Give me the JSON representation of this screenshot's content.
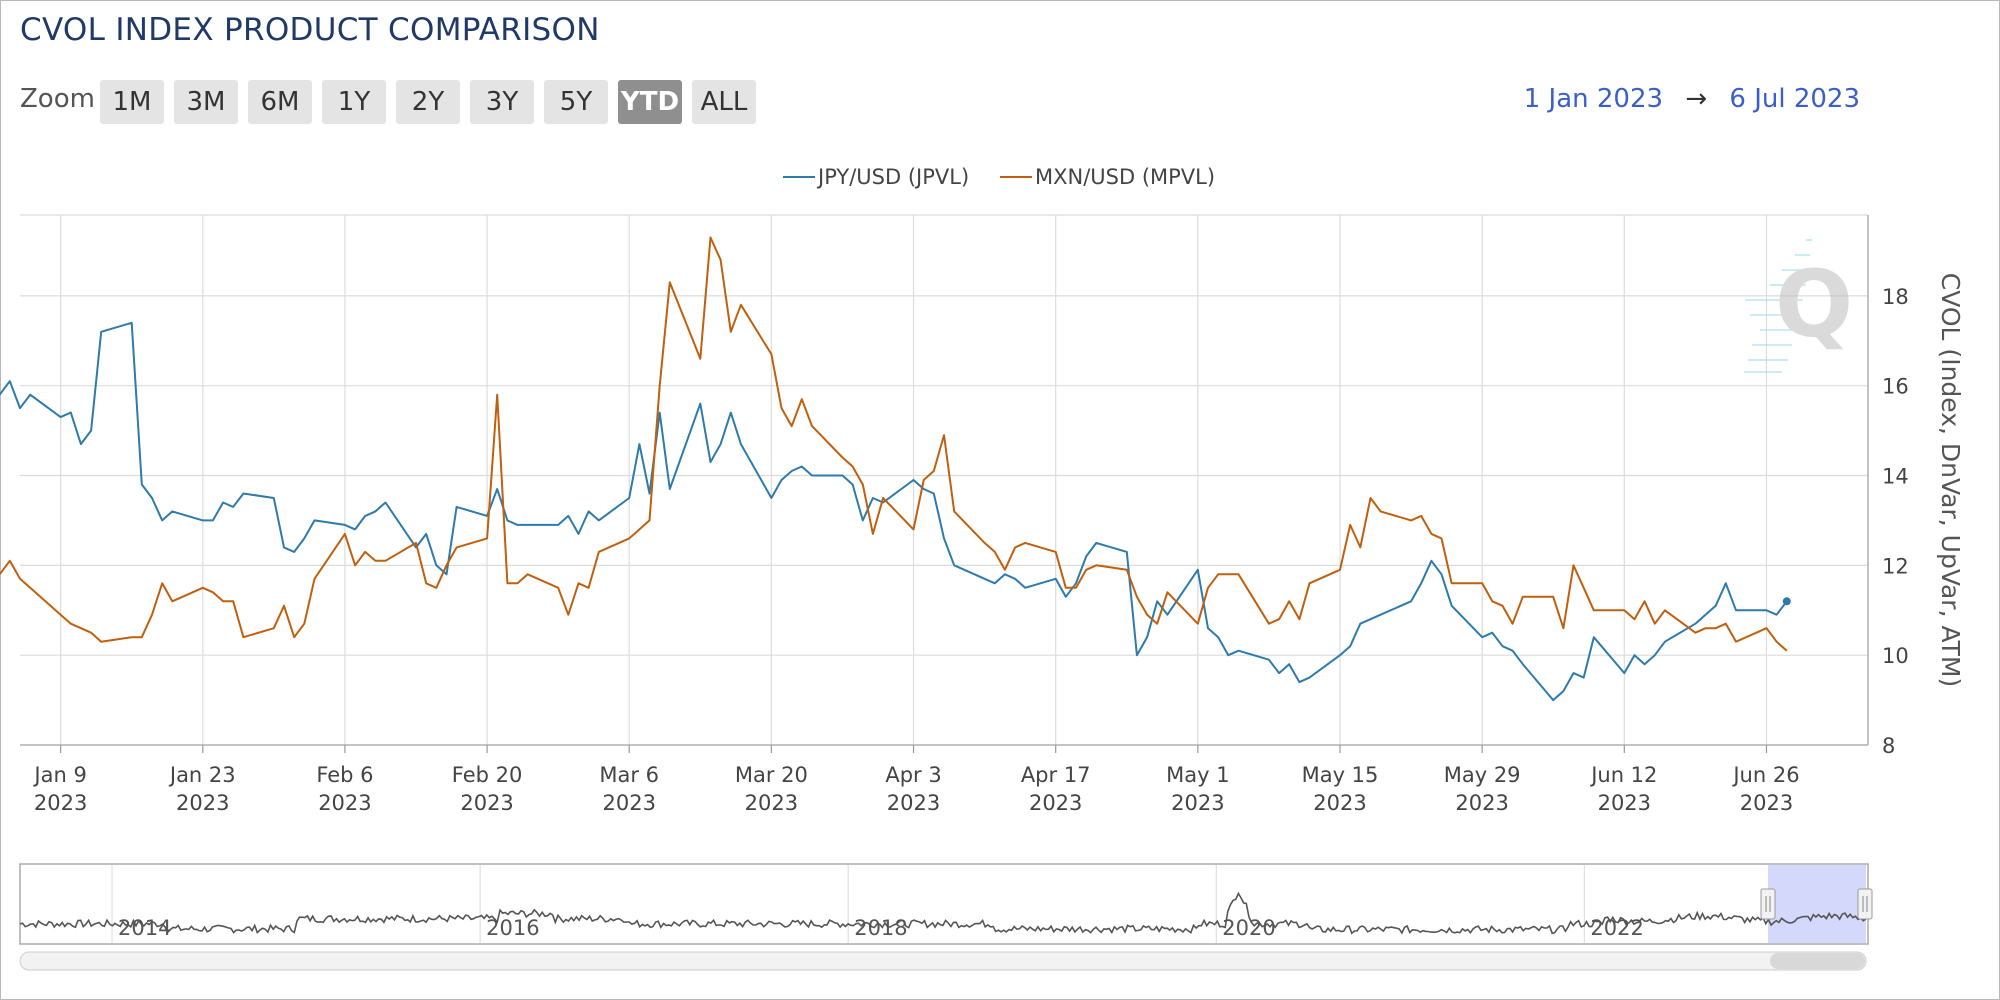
{
  "title": "CVOL INDEX PRODUCT COMPARISON",
  "zoom": {
    "label": "Zoom",
    "buttons": [
      "1M",
      "3M",
      "6M",
      "1Y",
      "2Y",
      "3Y",
      "5Y",
      "YTD",
      "ALL"
    ],
    "active": "YTD"
  },
  "range": {
    "from": "1 Jan 2023",
    "arrow": "→",
    "to": "6 Jul 2023"
  },
  "colors": {
    "jpy": "#2e7bab",
    "mxn": "#c0600e",
    "grid": "#dcdcdc",
    "navigator_fill": "#ccd2fb"
  },
  "chart_data": {
    "type": "line",
    "title": "CVOL INDEX PRODUCT COMPARISON",
    "ylabel": "CVOL (Index, DnVar, UpVar, ATM)",
    "ylim": [
      8,
      19.8
    ],
    "xlim": [
      "2023-01-05",
      "2023-07-06"
    ],
    "y_ticks": [
      8,
      10,
      12,
      14,
      16,
      18
    ],
    "x_ticks": [
      {
        "date": "2023-01-09",
        "label1": "Jan 9",
        "label2": "2023"
      },
      {
        "date": "2023-01-23",
        "label1": "Jan 23",
        "label2": "2023"
      },
      {
        "date": "2023-02-06",
        "label1": "Feb 6",
        "label2": "2023"
      },
      {
        "date": "2023-02-20",
        "label1": "Feb 20",
        "label2": "2023"
      },
      {
        "date": "2023-03-06",
        "label1": "Mar 6",
        "label2": "2023"
      },
      {
        "date": "2023-03-20",
        "label1": "Mar 20",
        "label2": "2023"
      },
      {
        "date": "2023-04-03",
        "label1": "Apr 3",
        "label2": "2023"
      },
      {
        "date": "2023-04-17",
        "label1": "Apr 17",
        "label2": "2023"
      },
      {
        "date": "2023-05-01",
        "label1": "May 1",
        "label2": "2023"
      },
      {
        "date": "2023-05-15",
        "label1": "May 15",
        "label2": "2023"
      },
      {
        "date": "2023-05-29",
        "label1": "May 29",
        "label2": "2023"
      },
      {
        "date": "2023-06-12",
        "label1": "Jun 12",
        "label2": "2023"
      },
      {
        "date": "2023-06-26",
        "label1": "Jun 26",
        "label2": "2023"
      }
    ],
    "legend_position": "top-center",
    "grid": true,
    "series": [
      {
        "name": "JPY/USD (JPVL)",
        "color": "#2e7bab",
        "points": [
          [
            "2023-01-03",
            15.8
          ],
          [
            "2023-01-04",
            16.1
          ],
          [
            "2023-01-05",
            15.5
          ],
          [
            "2023-01-06",
            15.8
          ],
          [
            "2023-01-09",
            15.3
          ],
          [
            "2023-01-10",
            15.4
          ],
          [
            "2023-01-11",
            14.7
          ],
          [
            "2023-01-12",
            15.0
          ],
          [
            "2023-01-13",
            17.2
          ],
          [
            "2023-01-16",
            17.4
          ],
          [
            "2023-01-17",
            13.8
          ],
          [
            "2023-01-18",
            13.5
          ],
          [
            "2023-01-19",
            13.0
          ],
          [
            "2023-01-20",
            13.2
          ],
          [
            "2023-01-23",
            13.0
          ],
          [
            "2023-01-24",
            13.0
          ],
          [
            "2023-01-25",
            13.4
          ],
          [
            "2023-01-26",
            13.3
          ],
          [
            "2023-01-27",
            13.6
          ],
          [
            "2023-01-30",
            13.5
          ],
          [
            "2023-01-31",
            12.4
          ],
          [
            "2023-02-01",
            12.3
          ],
          [
            "2023-02-02",
            12.6
          ],
          [
            "2023-02-03",
            13.0
          ],
          [
            "2023-02-06",
            12.9
          ],
          [
            "2023-02-07",
            12.8
          ],
          [
            "2023-02-08",
            13.1
          ],
          [
            "2023-02-09",
            13.2
          ],
          [
            "2023-02-10",
            13.4
          ],
          [
            "2023-02-13",
            12.4
          ],
          [
            "2023-02-14",
            12.7
          ],
          [
            "2023-02-15",
            12.0
          ],
          [
            "2023-02-16",
            11.8
          ],
          [
            "2023-02-17",
            13.3
          ],
          [
            "2023-02-20",
            13.1
          ],
          [
            "2023-02-21",
            13.7
          ],
          [
            "2023-02-22",
            13.0
          ],
          [
            "2023-02-23",
            12.9
          ],
          [
            "2023-02-24",
            12.9
          ],
          [
            "2023-02-27",
            12.9
          ],
          [
            "2023-02-28",
            13.1
          ],
          [
            "2023-03-01",
            12.7
          ],
          [
            "2023-03-02",
            13.2
          ],
          [
            "2023-03-03",
            13.0
          ],
          [
            "2023-03-06",
            13.5
          ],
          [
            "2023-03-07",
            14.7
          ],
          [
            "2023-03-08",
            13.6
          ],
          [
            "2023-03-09",
            15.4
          ],
          [
            "2023-03-10",
            13.7
          ],
          [
            "2023-03-13",
            15.6
          ],
          [
            "2023-03-14",
            14.3
          ],
          [
            "2023-03-15",
            14.7
          ],
          [
            "2023-03-16",
            15.4
          ],
          [
            "2023-03-17",
            14.7
          ],
          [
            "2023-03-20",
            13.5
          ],
          [
            "2023-03-21",
            13.9
          ],
          [
            "2023-03-22",
            14.1
          ],
          [
            "2023-03-23",
            14.2
          ],
          [
            "2023-03-24",
            14.0
          ],
          [
            "2023-03-27",
            14.0
          ],
          [
            "2023-03-28",
            13.8
          ],
          [
            "2023-03-29",
            13.0
          ],
          [
            "2023-03-30",
            13.5
          ],
          [
            "2023-03-31",
            13.4
          ],
          [
            "2023-04-03",
            13.9
          ],
          [
            "2023-04-04",
            13.7
          ],
          [
            "2023-04-05",
            13.6
          ],
          [
            "2023-04-06",
            12.6
          ],
          [
            "2023-04-07",
            12.0
          ],
          [
            "2023-04-10",
            11.7
          ],
          [
            "2023-04-11",
            11.6
          ],
          [
            "2023-04-12",
            11.8
          ],
          [
            "2023-04-13",
            11.7
          ],
          [
            "2023-04-14",
            11.5
          ],
          [
            "2023-04-17",
            11.7
          ],
          [
            "2023-04-18",
            11.3
          ],
          [
            "2023-04-19",
            11.6
          ],
          [
            "2023-04-20",
            12.2
          ],
          [
            "2023-04-21",
            12.5
          ],
          [
            "2023-04-24",
            12.3
          ],
          [
            "2023-04-25",
            10.0
          ],
          [
            "2023-04-26",
            10.4
          ],
          [
            "2023-04-27",
            11.2
          ],
          [
            "2023-04-28",
            10.9
          ],
          [
            "2023-05-01",
            11.9
          ],
          [
            "2023-05-02",
            10.6
          ],
          [
            "2023-05-03",
            10.4
          ],
          [
            "2023-05-04",
            10.0
          ],
          [
            "2023-05-05",
            10.1
          ],
          [
            "2023-05-08",
            9.9
          ],
          [
            "2023-05-09",
            9.6
          ],
          [
            "2023-05-10",
            9.8
          ],
          [
            "2023-05-11",
            9.4
          ],
          [
            "2023-05-12",
            9.5
          ],
          [
            "2023-05-15",
            10.0
          ],
          [
            "2023-05-16",
            10.2
          ],
          [
            "2023-05-17",
            10.7
          ],
          [
            "2023-05-18",
            10.8
          ],
          [
            "2023-05-19",
            10.9
          ],
          [
            "2023-05-22",
            11.2
          ],
          [
            "2023-05-23",
            11.6
          ],
          [
            "2023-05-24",
            12.1
          ],
          [
            "2023-05-25",
            11.8
          ],
          [
            "2023-05-26",
            11.1
          ],
          [
            "2023-05-29",
            10.4
          ],
          [
            "2023-05-30",
            10.5
          ],
          [
            "2023-05-31",
            10.2
          ],
          [
            "2023-06-01",
            10.1
          ],
          [
            "2023-06-02",
            9.8
          ],
          [
            "2023-06-05",
            9.0
          ],
          [
            "2023-06-06",
            9.2
          ],
          [
            "2023-06-07",
            9.6
          ],
          [
            "2023-06-08",
            9.5
          ],
          [
            "2023-06-09",
            10.4
          ],
          [
            "2023-06-12",
            9.6
          ],
          [
            "2023-06-13",
            10.0
          ],
          [
            "2023-06-14",
            9.8
          ],
          [
            "2023-06-15",
            10.0
          ],
          [
            "2023-06-16",
            10.3
          ],
          [
            "2023-06-19",
            10.7
          ],
          [
            "2023-06-20",
            10.9
          ],
          [
            "2023-06-21",
            11.1
          ],
          [
            "2023-06-22",
            11.6
          ],
          [
            "2023-06-23",
            11.0
          ],
          [
            "2023-06-26",
            11.0
          ],
          [
            "2023-06-27",
            10.9
          ],
          [
            "2023-06-28",
            11.2
          ]
        ]
      },
      {
        "name": "MXN/USD (MPVL)",
        "color": "#c0600e",
        "points": [
          [
            "2023-01-03",
            11.8
          ],
          [
            "2023-01-04",
            12.1
          ],
          [
            "2023-01-05",
            11.7
          ],
          [
            "2023-01-06",
            11.5
          ],
          [
            "2023-01-09",
            10.9
          ],
          [
            "2023-01-10",
            10.7
          ],
          [
            "2023-01-11",
            10.6
          ],
          [
            "2023-01-12",
            10.5
          ],
          [
            "2023-01-13",
            10.3
          ],
          [
            "2023-01-16",
            10.4
          ],
          [
            "2023-01-17",
            10.4
          ],
          [
            "2023-01-18",
            10.9
          ],
          [
            "2023-01-19",
            11.6
          ],
          [
            "2023-01-20",
            11.2
          ],
          [
            "2023-01-23",
            11.5
          ],
          [
            "2023-01-24",
            11.4
          ],
          [
            "2023-01-25",
            11.2
          ],
          [
            "2023-01-26",
            11.2
          ],
          [
            "2023-01-27",
            10.4
          ],
          [
            "2023-01-30",
            10.6
          ],
          [
            "2023-01-31",
            11.1
          ],
          [
            "2023-02-01",
            10.4
          ],
          [
            "2023-02-02",
            10.7
          ],
          [
            "2023-02-03",
            11.7
          ],
          [
            "2023-02-06",
            12.7
          ],
          [
            "2023-02-07",
            12.0
          ],
          [
            "2023-02-08",
            12.3
          ],
          [
            "2023-02-09",
            12.1
          ],
          [
            "2023-02-10",
            12.1
          ],
          [
            "2023-02-13",
            12.5
          ],
          [
            "2023-02-14",
            11.6
          ],
          [
            "2023-02-15",
            11.5
          ],
          [
            "2023-02-16",
            12.0
          ],
          [
            "2023-02-17",
            12.4
          ],
          [
            "2023-02-20",
            12.6
          ],
          [
            "2023-02-21",
            15.8
          ],
          [
            "2023-02-22",
            11.6
          ],
          [
            "2023-02-23",
            11.6
          ],
          [
            "2023-02-24",
            11.8
          ],
          [
            "2023-02-27",
            11.5
          ],
          [
            "2023-02-28",
            10.9
          ],
          [
            "2023-03-01",
            11.6
          ],
          [
            "2023-03-02",
            11.5
          ],
          [
            "2023-03-03",
            12.3
          ],
          [
            "2023-03-06",
            12.6
          ],
          [
            "2023-03-07",
            12.8
          ],
          [
            "2023-03-08",
            13.0
          ],
          [
            "2023-03-09",
            16.0
          ],
          [
            "2023-03-10",
            18.3
          ],
          [
            "2023-03-13",
            16.6
          ],
          [
            "2023-03-14",
            19.3
          ],
          [
            "2023-03-15",
            18.8
          ],
          [
            "2023-03-16",
            17.2
          ],
          [
            "2023-03-17",
            17.8
          ],
          [
            "2023-03-20",
            16.7
          ],
          [
            "2023-03-21",
            15.5
          ],
          [
            "2023-03-22",
            15.1
          ],
          [
            "2023-03-23",
            15.7
          ],
          [
            "2023-03-24",
            15.1
          ],
          [
            "2023-03-27",
            14.4
          ],
          [
            "2023-03-28",
            14.2
          ],
          [
            "2023-03-29",
            13.8
          ],
          [
            "2023-03-30",
            12.7
          ],
          [
            "2023-03-31",
            13.5
          ],
          [
            "2023-04-03",
            12.8
          ],
          [
            "2023-04-04",
            13.9
          ],
          [
            "2023-04-05",
            14.1
          ],
          [
            "2023-04-06",
            14.9
          ],
          [
            "2023-04-07",
            13.2
          ],
          [
            "2023-04-10",
            12.5
          ],
          [
            "2023-04-11",
            12.3
          ],
          [
            "2023-04-12",
            11.9
          ],
          [
            "2023-04-13",
            12.4
          ],
          [
            "2023-04-14",
            12.5
          ],
          [
            "2023-04-17",
            12.3
          ],
          [
            "2023-04-18",
            11.5
          ],
          [
            "2023-04-19",
            11.5
          ],
          [
            "2023-04-20",
            11.9
          ],
          [
            "2023-04-21",
            12.0
          ],
          [
            "2023-04-24",
            11.9
          ],
          [
            "2023-04-25",
            11.3
          ],
          [
            "2023-04-26",
            10.9
          ],
          [
            "2023-04-27",
            10.7
          ],
          [
            "2023-04-28",
            11.4
          ],
          [
            "2023-05-01",
            10.7
          ],
          [
            "2023-05-02",
            11.5
          ],
          [
            "2023-05-03",
            11.8
          ],
          [
            "2023-05-04",
            11.8
          ],
          [
            "2023-05-05",
            11.8
          ],
          [
            "2023-05-08",
            10.7
          ],
          [
            "2023-05-09",
            10.8
          ],
          [
            "2023-05-10",
            11.2
          ],
          [
            "2023-05-11",
            10.8
          ],
          [
            "2023-05-12",
            11.6
          ],
          [
            "2023-05-15",
            11.9
          ],
          [
            "2023-05-16",
            12.9
          ],
          [
            "2023-05-17",
            12.4
          ],
          [
            "2023-05-18",
            13.5
          ],
          [
            "2023-05-19",
            13.2
          ],
          [
            "2023-05-22",
            13.0
          ],
          [
            "2023-05-23",
            13.1
          ],
          [
            "2023-05-24",
            12.7
          ],
          [
            "2023-05-25",
            12.6
          ],
          [
            "2023-05-26",
            11.6
          ],
          [
            "2023-05-29",
            11.6
          ],
          [
            "2023-05-30",
            11.2
          ],
          [
            "2023-05-31",
            11.1
          ],
          [
            "2023-06-01",
            10.7
          ],
          [
            "2023-06-02",
            11.3
          ],
          [
            "2023-06-05",
            11.3
          ],
          [
            "2023-06-06",
            10.6
          ],
          [
            "2023-06-07",
            12.0
          ],
          [
            "2023-06-08",
            11.5
          ],
          [
            "2023-06-09",
            11.0
          ],
          [
            "2023-06-12",
            11.0
          ],
          [
            "2023-06-13",
            10.8
          ],
          [
            "2023-06-14",
            11.2
          ],
          [
            "2023-06-15",
            10.7
          ],
          [
            "2023-06-16",
            11.0
          ],
          [
            "2023-06-19",
            10.5
          ],
          [
            "2023-06-20",
            10.6
          ],
          [
            "2023-06-21",
            10.6
          ],
          [
            "2023-06-22",
            10.7
          ],
          [
            "2023-06-23",
            10.3
          ],
          [
            "2023-06-26",
            10.6
          ],
          [
            "2023-06-27",
            10.3
          ],
          [
            "2023-06-28",
            10.1
          ]
        ]
      }
    ]
  },
  "navigator": {
    "year_labels": [
      "2014",
      "2016",
      "2018",
      "2020",
      "2022"
    ],
    "selected_range": [
      "2023-01-01",
      "2023-07-06"
    ],
    "handle_glyph": "|||"
  }
}
